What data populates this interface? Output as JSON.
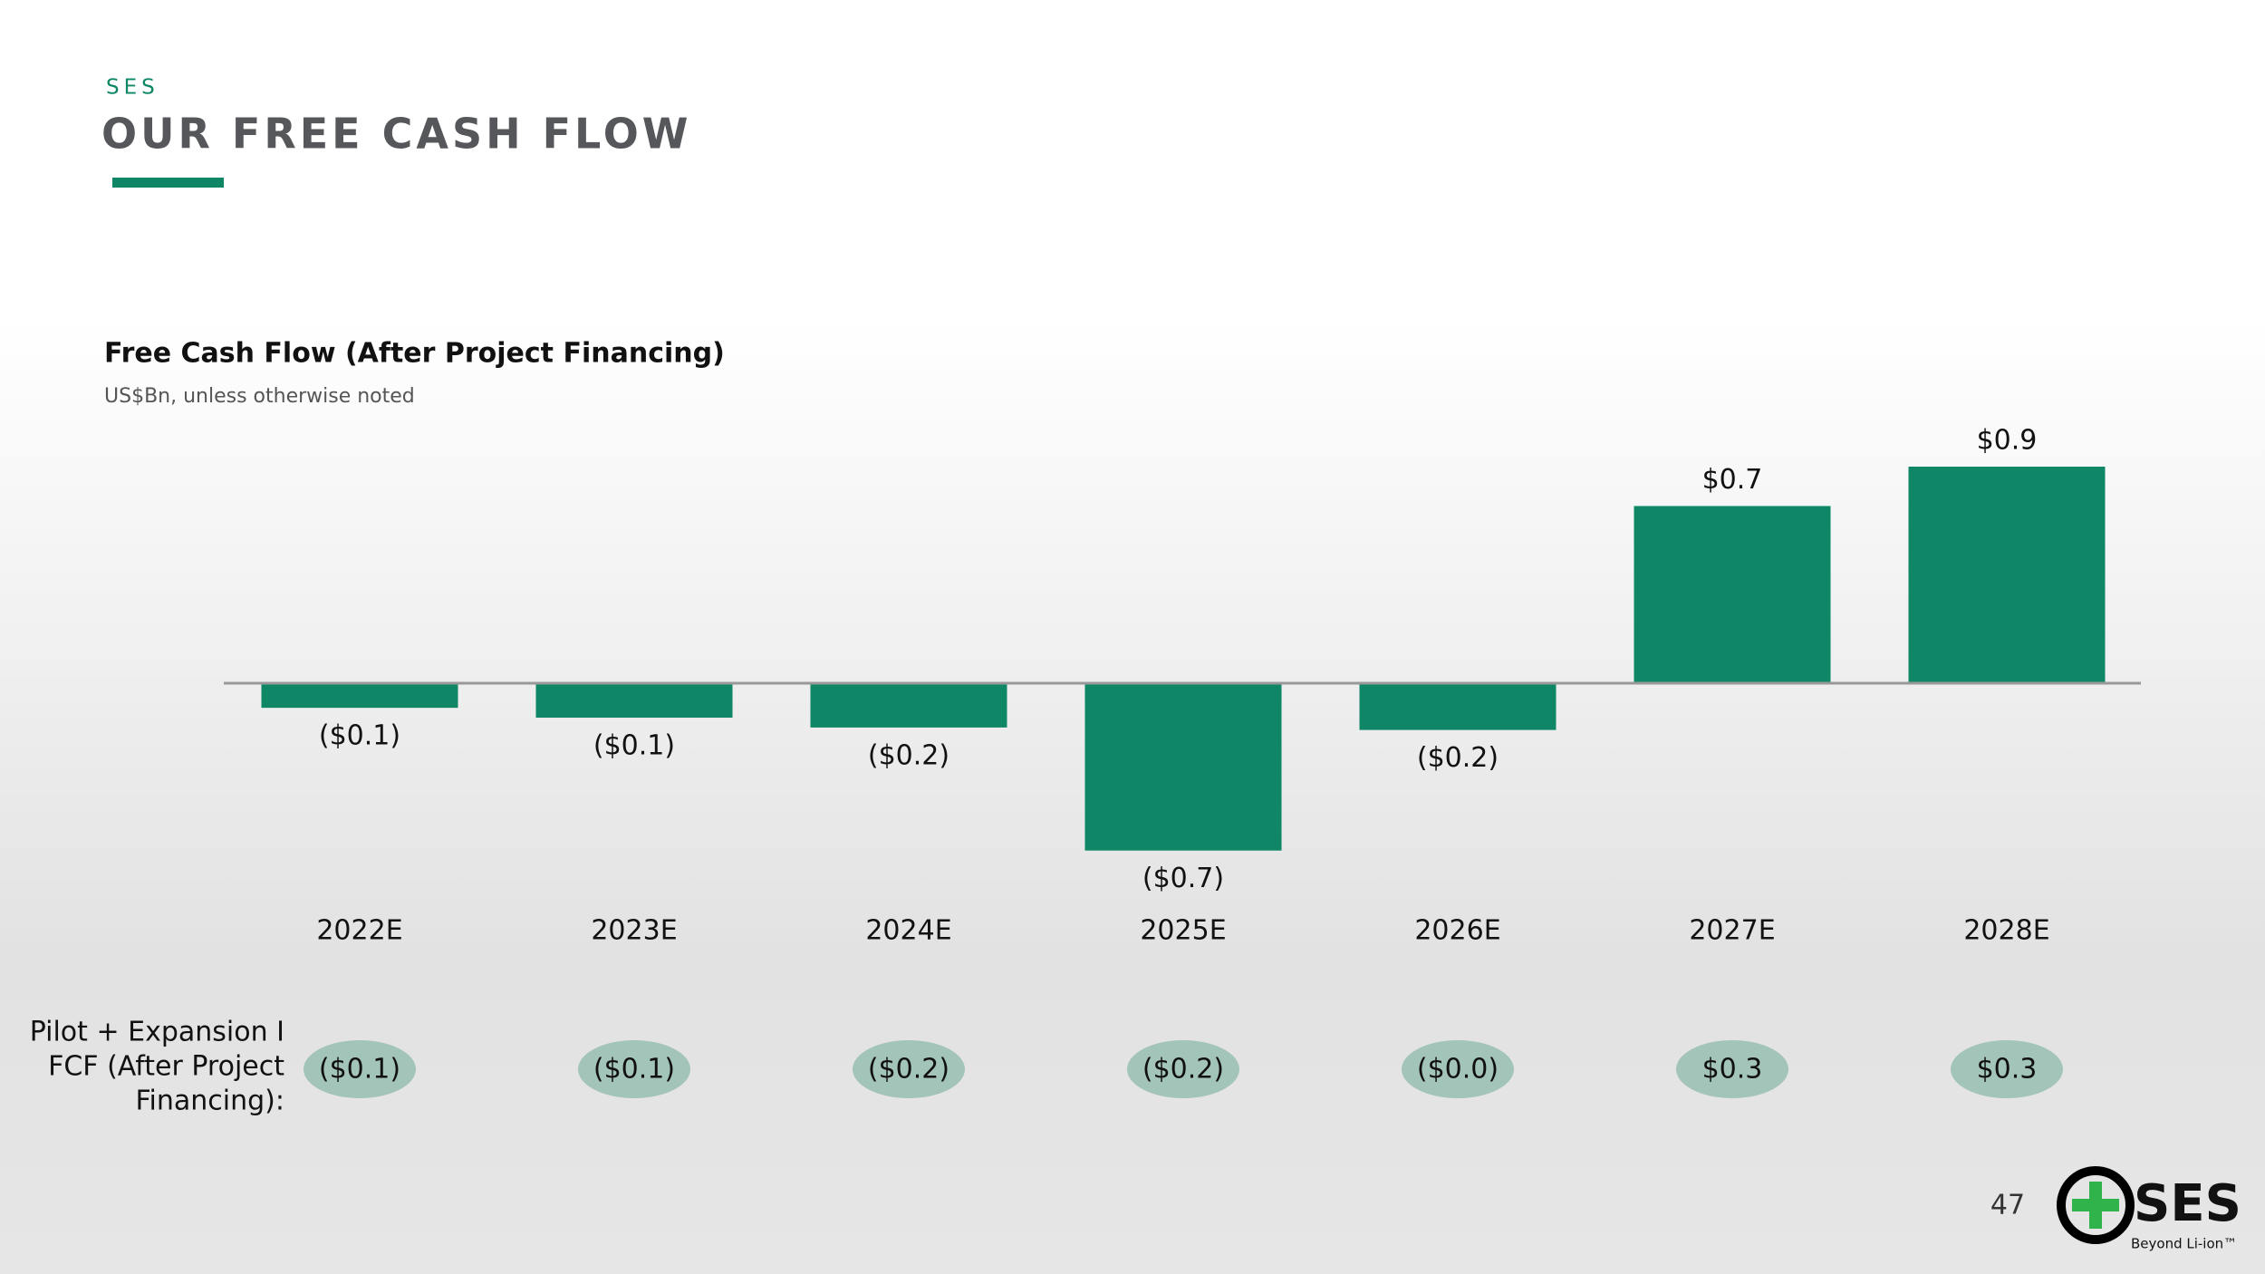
{
  "header": {
    "kicker": "SES",
    "title": "OUR FREE CASH FLOW"
  },
  "chart_data": {
    "type": "bar",
    "title": "Free Cash Flow (After Project Financing)",
    "subtitle": "US$Bn, unless otherwise noted",
    "categories": [
      "2022E",
      "2023E",
      "2024E",
      "2025E",
      "2026E",
      "2027E",
      "2028E"
    ],
    "values": [
      -0.1,
      -0.14,
      -0.18,
      -0.68,
      -0.19,
      0.72,
      0.88
    ],
    "value_labels": [
      "($0.1)",
      "($0.1)",
      "($0.2)",
      "($0.7)",
      "($0.2)",
      "$0.7",
      "$0.9"
    ],
    "color": "#0f8767",
    "pilot_row": {
      "label": [
        "Pilot + Expansion I",
        "FCF (After Project",
        "Financing):"
      ],
      "values": [
        "($0.1)",
        "($0.1)",
        "($0.2)",
        "($0.2)",
        "($0.0)",
        "$0.3",
        "$0.3"
      ]
    }
  },
  "footer": {
    "page_number": "47",
    "logo_text": "SES",
    "logo_tagline": "Beyond Li-ion™"
  }
}
